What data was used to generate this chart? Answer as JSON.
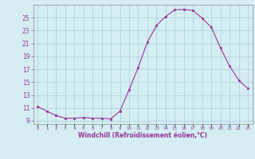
{
  "x": [
    0,
    1,
    2,
    3,
    4,
    5,
    6,
    7,
    8,
    9,
    10,
    11,
    12,
    13,
    14,
    15,
    16,
    17,
    18,
    19,
    20,
    21,
    22,
    23
  ],
  "y": [
    11.2,
    10.5,
    9.8,
    9.4,
    9.4,
    9.5,
    9.4,
    9.4,
    9.3,
    10.5,
    13.8,
    17.3,
    21.2,
    23.8,
    25.2,
    26.2,
    26.3,
    26.1,
    24.9,
    23.5,
    20.3,
    17.5,
    15.3,
    14.0
  ],
  "line_color": "#993399",
  "marker": "s",
  "marker_size": 2,
  "bg_color": "#d4eef4",
  "grid_color": "#aaccdd",
  "tick_color": "#993399",
  "xlabel": "Windchill (Refroidissement éolien,°C)",
  "xlabel_color": "#993399",
  "ylim": [
    8.5,
    27.0
  ],
  "yticks": [
    9,
    11,
    13,
    15,
    17,
    19,
    21,
    23,
    25
  ],
  "xlim": [
    -0.5,
    23.5
  ],
  "spine_color": "#888888"
}
